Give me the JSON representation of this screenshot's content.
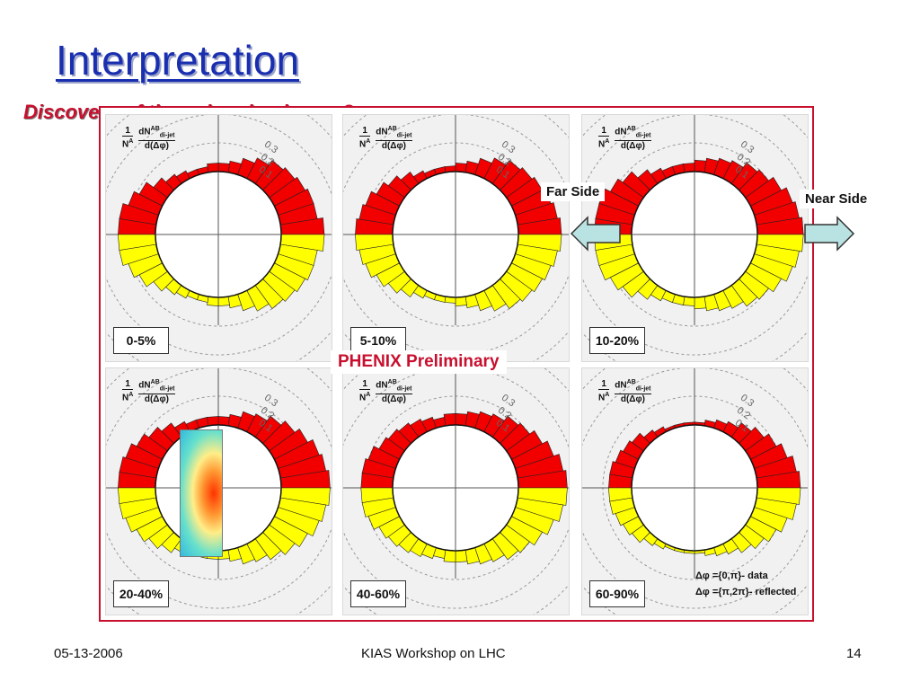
{
  "title": "Interpretation",
  "subtitle": "Discovery of the color shockwave?",
  "phenix_label": "PHENIX Preliminary",
  "far_side_label": "Far Side",
  "near_side_label": "Near Side",
  "legend": {
    "data": "Δφ ={0,π}- data",
    "reflected": "Δφ ={π,2π}- reflected"
  },
  "footer": {
    "date": "05-13-2006",
    "event": "KIAS Workshop on LHC",
    "page": "14"
  },
  "colors": {
    "red": "#f20000",
    "yellow": "#ffff00",
    "title_blue": "#1a2fb0",
    "accent_red": "#c8102e"
  },
  "chart_data": {
    "type": "polar-bar",
    "axis_label": {
      "line1": "1",
      "line2": "N",
      "sup": "A",
      "num": "dN",
      "num_sup": "AB",
      "num_sub": "di-jet",
      "den": "d(Δφ)"
    },
    "ring_ticks": [
      "0.1",
      "0.2",
      "0.3"
    ],
    "panels": [
      {
        "centrality": "0-5%",
        "values": [
          0.15,
          0.13,
          0.13,
          0.12,
          0.11,
          0.1,
          0.08,
          0.06,
          0.04,
          0.03,
          0.03,
          0.02,
          0.02,
          0.03,
          0.04,
          0.06,
          0.09,
          0.11,
          0.13,
          0.13
        ]
      },
      {
        "centrality": "5-10%",
        "values": [
          0.15,
          0.14,
          0.13,
          0.12,
          0.11,
          0.1,
          0.08,
          0.06,
          0.04,
          0.03,
          0.02,
          0.02,
          0.02,
          0.03,
          0.05,
          0.07,
          0.09,
          0.11,
          0.12,
          0.13
        ]
      },
      {
        "centrality": "10-20%",
        "values": [
          0.16,
          0.15,
          0.14,
          0.12,
          0.1,
          0.09,
          0.07,
          0.06,
          0.05,
          0.04,
          0.03,
          0.03,
          0.03,
          0.04,
          0.06,
          0.09,
          0.11,
          0.13,
          0.13,
          0.13
        ]
      },
      {
        "centrality": "20-40%",
        "values": [
          0.17,
          0.16,
          0.15,
          0.13,
          0.11,
          0.09,
          0.07,
          0.06,
          0.04,
          0.03,
          0.03,
          0.03,
          0.03,
          0.04,
          0.06,
          0.08,
          0.1,
          0.12,
          0.13,
          0.13
        ]
      },
      {
        "centrality": "40-60%",
        "values": [
          0.17,
          0.16,
          0.14,
          0.12,
          0.1,
          0.09,
          0.07,
          0.06,
          0.05,
          0.04,
          0.04,
          0.03,
          0.04,
          0.05,
          0.06,
          0.07,
          0.08,
          0.1,
          0.11,
          0.11
        ]
      },
      {
        "centrality": "60-90%",
        "values": [
          0.15,
          0.14,
          0.12,
          0.1,
          0.08,
          0.06,
          0.04,
          0.03,
          0.02,
          0.01,
          0.01,
          0.01,
          0.01,
          0.02,
          0.03,
          0.05,
          0.06,
          0.07,
          0.08,
          0.08
        ]
      }
    ]
  }
}
